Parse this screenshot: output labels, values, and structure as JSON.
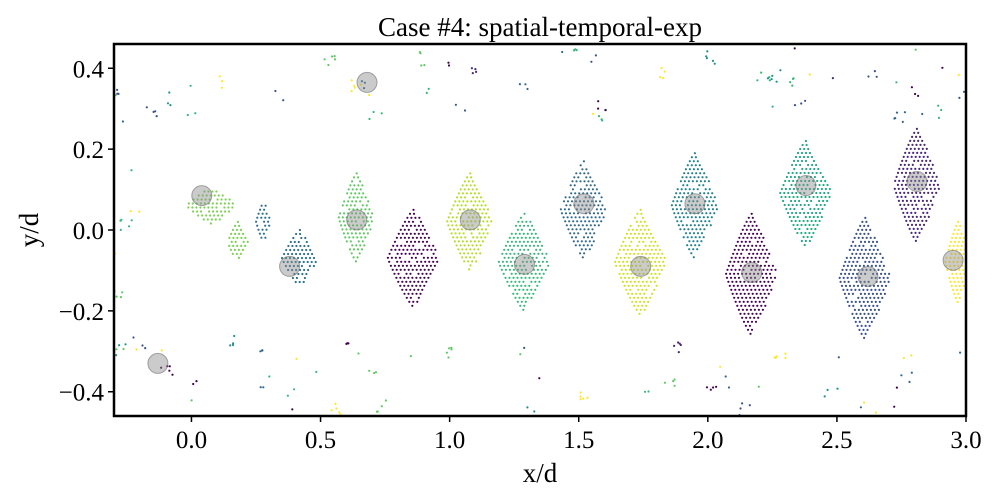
{
  "chart_data": {
    "type": "scatter",
    "title": "Case #4: spatial-temporal-exp",
    "xlabel": "x/d",
    "ylabel": "y/d",
    "xlim": [
      -0.3,
      3.0
    ],
    "ylim": [
      -0.46,
      0.46
    ],
    "grid": false,
    "legend": "none",
    "x_ticks": [
      {
        "value": 0.0,
        "label": "0.0"
      },
      {
        "value": 0.5,
        "label": "0.5"
      },
      {
        "value": 1.0,
        "label": "1.0"
      },
      {
        "value": 1.5,
        "label": "1.5"
      },
      {
        "value": 2.0,
        "label": "2.0"
      },
      {
        "value": 2.5,
        "label": "2.5"
      },
      {
        "value": 3.0,
        "label": "3.0"
      }
    ],
    "y_ticks": [
      {
        "value": 0.4,
        "label": "0.4"
      },
      {
        "value": 0.2,
        "label": "0.2"
      },
      {
        "value": 0.0,
        "label": "0.0"
      },
      {
        "value": -0.2,
        "label": "−0.2"
      },
      {
        "value": -0.4,
        "label": "−0.4"
      }
    ],
    "markers": [
      {
        "x": 0.04,
        "y": 0.085
      },
      {
        "x": 0.38,
        "y": -0.09
      },
      {
        "x": 0.64,
        "y": 0.025
      },
      {
        "x": 0.68,
        "y": 0.365
      },
      {
        "x": 1.08,
        "y": 0.025
      },
      {
        "x": 1.29,
        "y": -0.085
      },
      {
        "x": 1.52,
        "y": 0.065
      },
      {
        "x": 1.74,
        "y": -0.09
      },
      {
        "x": 1.95,
        "y": 0.065
      },
      {
        "x": 2.17,
        "y": -0.105
      },
      {
        "x": 2.38,
        "y": 0.11
      },
      {
        "x": 2.62,
        "y": -0.115
      },
      {
        "x": 2.81,
        "y": 0.12
      },
      {
        "x": 2.95,
        "y": -0.075
      },
      {
        "x": -0.13,
        "y": -0.33
      }
    ],
    "clusters": [
      {
        "cx": 0.08,
        "cy": 0.06,
        "rx": 0.1,
        "ry": 0.045,
        "color": "#7ad151"
      },
      {
        "cx": 0.18,
        "cy": -0.03,
        "rx": 0.04,
        "ry": 0.05,
        "color": "#7ad151"
      },
      {
        "cx": 0.28,
        "cy": 0.02,
        "rx": 0.03,
        "ry": 0.05,
        "color": "#2c728e"
      },
      {
        "cx": 0.42,
        "cy": -0.07,
        "rx": 0.07,
        "ry": 0.07,
        "color": "#2c728e"
      },
      {
        "cx": 0.64,
        "cy": 0.03,
        "rx": 0.07,
        "ry": 0.11,
        "color": "#5ec962"
      },
      {
        "cx": 0.86,
        "cy": -0.07,
        "rx": 0.1,
        "ry": 0.12,
        "color": "#440154"
      },
      {
        "cx": 1.08,
        "cy": 0.02,
        "rx": 0.09,
        "ry": 0.12,
        "color": "#b5de2b"
      },
      {
        "cx": 1.29,
        "cy": -0.08,
        "rx": 0.1,
        "ry": 0.12,
        "color": "#35b779"
      },
      {
        "cx": 1.52,
        "cy": 0.05,
        "rx": 0.09,
        "ry": 0.12,
        "color": "#31688e"
      },
      {
        "cx": 1.74,
        "cy": -0.08,
        "rx": 0.1,
        "ry": 0.13,
        "color": "#d0e11c"
      },
      {
        "cx": 1.95,
        "cy": 0.06,
        "rx": 0.09,
        "ry": 0.13,
        "color": "#26828e"
      },
      {
        "cx": 2.17,
        "cy": -0.11,
        "rx": 0.1,
        "ry": 0.15,
        "color": "#440154"
      },
      {
        "cx": 2.38,
        "cy": 0.09,
        "rx": 0.1,
        "ry": 0.13,
        "color": "#22a884"
      },
      {
        "cx": 2.61,
        "cy": -0.12,
        "rx": 0.1,
        "ry": 0.15,
        "color": "#3b528b"
      },
      {
        "cx": 2.81,
        "cy": 0.11,
        "rx": 0.09,
        "ry": 0.14,
        "color": "#482878"
      },
      {
        "cx": 2.97,
        "cy": -0.08,
        "rx": 0.05,
        "ry": 0.1,
        "color": "#fde725"
      }
    ]
  }
}
